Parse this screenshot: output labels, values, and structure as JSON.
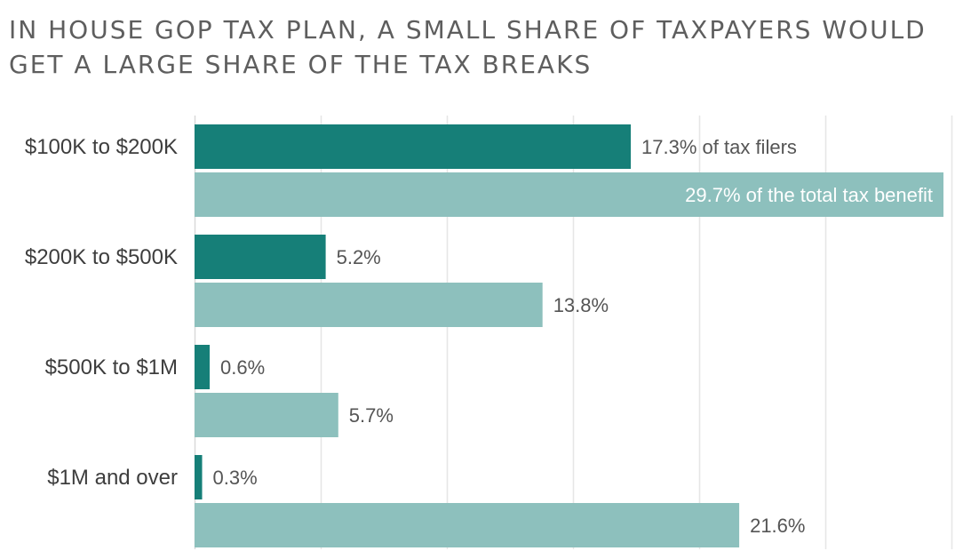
{
  "title": "In House GOP tax plan, a small share of taxpayers would get a large share of the tax breaks",
  "colors": {
    "filers": "#167f78",
    "benefit": "#8dc0bd",
    "grid": "#e6e6e6",
    "axis": "#d9d9d9"
  },
  "chart_data": {
    "type": "bar",
    "orientation": "horizontal",
    "categories": [
      "$100K to $200K",
      "$200K to $500K",
      "$500K to $1M",
      "$1M and over"
    ],
    "series": [
      {
        "values": [
          17.3,
          5.2,
          0.6,
          0.3
        ],
        "labels": [
          "17.3% of tax filers",
          "5.2%",
          "0.6%",
          "0.3%"
        ]
      },
      {
        "values": [
          29.7,
          13.8,
          5.7,
          21.6
        ],
        "labels": [
          "29.7% of the total tax benefit",
          "13.8%",
          "5.7%",
          "21.6%"
        ]
      }
    ],
    "xlim": [
      0,
      30
    ],
    "grid": true,
    "title": "In House GOP tax plan, a small share of taxpayers would get a large share of the tax breaks"
  }
}
